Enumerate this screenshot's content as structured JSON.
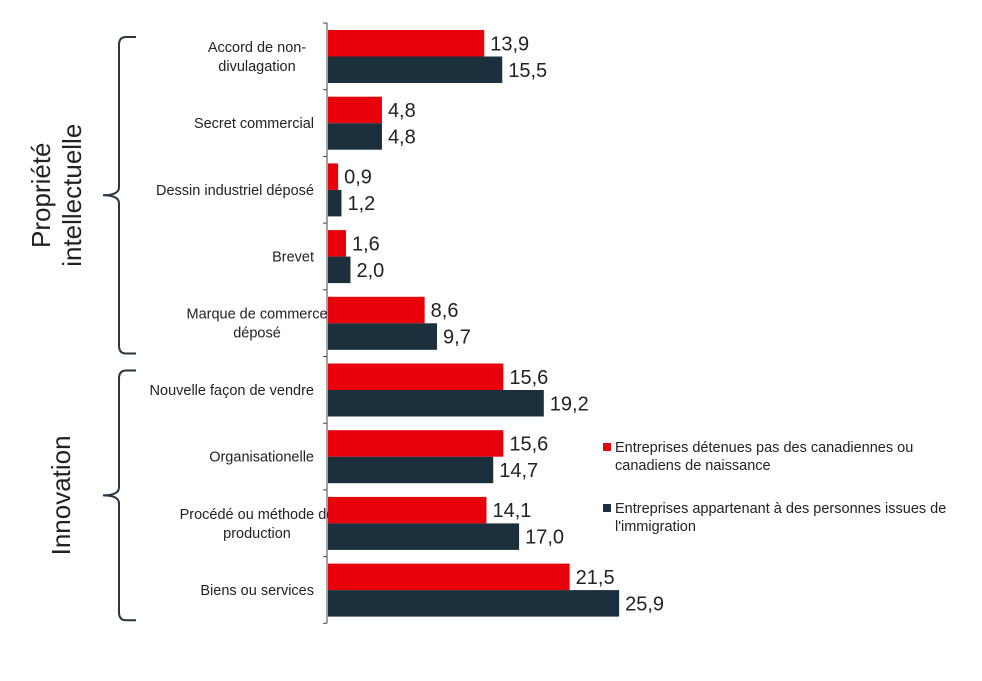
{
  "chart_data": {
    "type": "bar",
    "orientation": "horizontal",
    "categories": [
      [
        "Accord de non-",
        "divulagation"
      ],
      [
        "Secret commercial"
      ],
      [
        "Dessin industriel déposé"
      ],
      [
        "Brevet"
      ],
      [
        "Marque de commerce",
        "déposé"
      ],
      [
        "Nouvelle façon de vendre"
      ],
      [
        "Organisationelle"
      ],
      [
        "Procédé ou méthode de",
        "production"
      ],
      [
        "Biens ou services"
      ]
    ],
    "series": [
      {
        "name": [
          "Entreprises détenues pas des canadiennes ou",
          "canadiens de naissance"
        ],
        "color": "#e8000b",
        "values": [
          13.9,
          4.8,
          0.9,
          1.6,
          8.6,
          15.6,
          15.6,
          14.1,
          21.5
        ],
        "labels": [
          "13,9",
          "4,8",
          "0,9",
          "1,6",
          "8,6",
          "15,6",
          "15,6",
          "14,1",
          "21,5"
        ]
      },
      {
        "name": [
          "Entreprises appartenant à des personnes issues de",
          "l'immigration"
        ],
        "color": "#1c2f3c",
        "values": [
          15.5,
          4.8,
          1.2,
          2.0,
          9.7,
          19.2,
          14.7,
          17.0,
          25.9
        ],
        "labels": [
          "15,5",
          "4,8",
          "1,2",
          "2,0",
          "9,7",
          "19,2",
          "14,7",
          "17,0",
          "25,9"
        ]
      }
    ],
    "groups": [
      {
        "label": [
          "Propriété",
          "intellectuelle"
        ],
        "from": 0,
        "to": 4
      },
      {
        "label": [
          "Innovation"
        ],
        "from": 5,
        "to": 8
      }
    ],
    "legend_position": "right",
    "grid": false,
    "xlim": [
      0,
      30
    ]
  }
}
